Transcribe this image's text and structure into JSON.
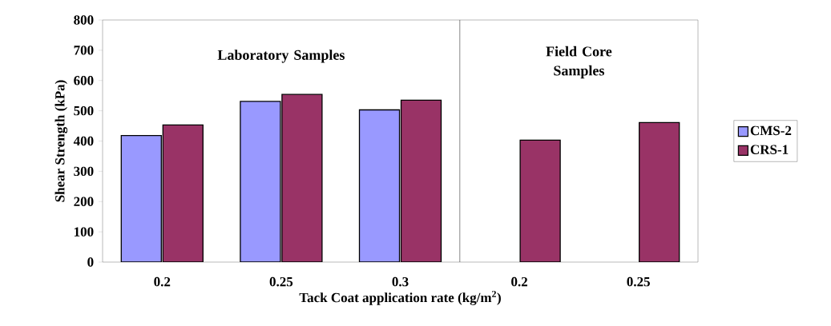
{
  "chart_data": {
    "type": "bar",
    "xlabel": "Tack Coat application rate (kg/m$^{2}$)",
    "ylabel": "Shear Strength (kPa)",
    "categories": [
      "0.2",
      "0.25",
      "0.3",
      "0.2",
      "0.25"
    ],
    "series": [
      {
        "name": "CMS-2",
        "color": "#9999ff",
        "values": [
          418,
          531,
          503,
          null,
          null
        ]
      },
      {
        "name": "CRS-1",
        "color": "#993366",
        "values": [
          453,
          554,
          535,
          403,
          461
        ]
      }
    ],
    "ylim": [
      0,
      800
    ],
    "yticks": [
      0,
      100,
      200,
      300,
      400,
      500,
      600,
      700,
      800
    ],
    "annotations": [
      "Laboratory Samples",
      "Field Core Samples"
    ],
    "legend": "right",
    "grid": false
  }
}
